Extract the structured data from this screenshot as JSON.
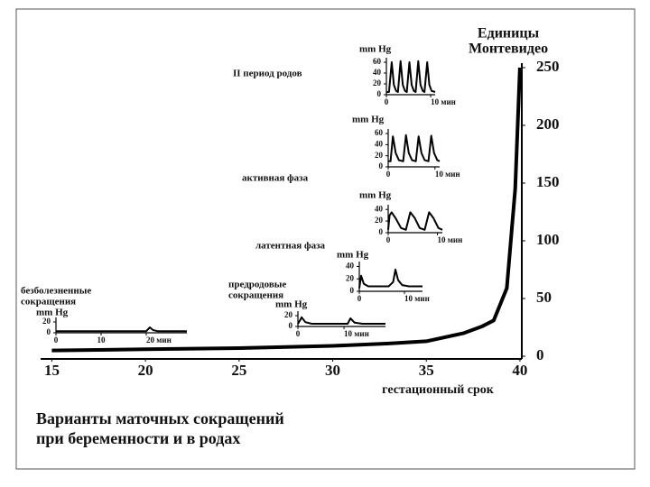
{
  "chart_data": [
    {
      "type": "line",
      "title": [
        "Варианты маточных сокращений",
        "при беременности и в родах"
      ],
      "x_label": "гестационный срок",
      "y_label": [
        "Единицы",
        "Монтевидео"
      ],
      "x": [
        15,
        20,
        25,
        30,
        33,
        35,
        37,
        38,
        38.6,
        39.3,
        39.75,
        40
      ],
      "values": [
        5,
        6,
        7,
        9,
        11,
        13,
        20,
        26,
        31,
        59,
        145,
        250
      ],
      "color": "#000000",
      "xlim": [
        14.4,
        40.1
      ],
      "ylim": [
        0,
        250
      ],
      "xticks": [
        15,
        20,
        25,
        30,
        35,
        40
      ],
      "yticks": [
        0,
        50,
        100,
        150,
        200,
        250
      ]
    },
    {
      "type": "line",
      "label": [
        "II период родов"
      ],
      "y_label": "mm Hg",
      "x": [
        0,
        0.6,
        1.2,
        1.7,
        2.2,
        2.6,
        3.2,
        3.7,
        4.2,
        4.6,
        5.2,
        5.7,
        6.2,
        6.6,
        7.2,
        7.7,
        8.2,
        8.6,
        9.2,
        9.7,
        10.2,
        11
      ],
      "values": [
        5,
        5,
        60,
        18,
        7,
        5,
        62,
        18,
        7,
        5,
        60,
        18,
        7,
        5,
        62,
        18,
        7,
        5,
        60,
        18,
        7,
        5
      ],
      "xlim": [
        0,
        11
      ],
      "ylim": [
        0,
        65
      ],
      "xticks": [
        0,
        {
          "value": 10,
          "label": "10 мин"
        }
      ],
      "yticks": [
        0,
        20,
        40,
        60
      ]
    },
    {
      "type": "line",
      "label": [
        "активная фаза"
      ],
      "y_label": "mm Hg",
      "x": [
        0,
        0.5,
        1,
        1.6,
        2.3,
        3.2,
        3.8,
        4.4,
        5.1,
        5.9,
        6.5,
        7.1,
        7.8,
        8.6,
        9.2,
        9.8,
        10.5,
        11
      ],
      "values": [
        10,
        10,
        55,
        25,
        12,
        10,
        57,
        25,
        12,
        10,
        55,
        25,
        12,
        10,
        56,
        25,
        12,
        10
      ],
      "xlim": [
        0,
        11
      ],
      "ylim": [
        0,
        65
      ],
      "xticks": [
        0,
        {
          "value": 10,
          "label": "10 мин"
        }
      ],
      "yticks": [
        0,
        20,
        40,
        60
      ]
    },
    {
      "type": "line",
      "label": [
        "латентная фаза"
      ],
      "y_label": "mm Hg",
      "x": [
        0,
        0.3,
        0.7,
        1.5,
        2.6,
        3.6,
        4.5,
        5.4,
        6.4,
        7.4,
        8.3,
        9.2,
        10.2,
        11
      ],
      "values": [
        5,
        30,
        35,
        25,
        8,
        5,
        35,
        25,
        8,
        5,
        35,
        25,
        8,
        5
      ],
      "xlim": [
        0,
        11
      ],
      "ylim": [
        0,
        45
      ],
      "xticks": [
        0,
        {
          "value": 10,
          "label": "10 мин"
        }
      ],
      "yticks": [
        0,
        20,
        40
      ]
    },
    {
      "type": "line",
      "label": [
        "предродовые",
        "сокращения"
      ],
      "y_label": "mm Hg",
      "x": [
        0,
        0.4,
        1,
        2,
        6.5,
        7.5,
        8,
        8.6,
        9.5,
        11,
        14
      ],
      "values": [
        5,
        25,
        12,
        8,
        8,
        15,
        35,
        18,
        10,
        8,
        8
      ],
      "xlim": [
        0,
        14
      ],
      "ylim": [
        0,
        45
      ],
      "xticks": [
        0,
        {
          "value": 10,
          "label": "10 мин"
        }
      ],
      "yticks": [
        0,
        20,
        40
      ]
    },
    {
      "type": "line",
      "label": [
        "безболезненные",
        "сокращения"
      ],
      "y_label": "mm Hg",
      "x": [
        0,
        20,
        20.8,
        21.5,
        22.5,
        29
      ],
      "values": [
        3,
        3,
        10,
        5,
        3,
        3
      ],
      "xlim": [
        0,
        29
      ],
      "ylim": [
        0,
        25
      ],
      "xticks": [
        0,
        10,
        {
          "value": 20,
          "label": "20 мин"
        }
      ],
      "yticks": [
        0,
        20
      ]
    },
    {
      "type": "line",
      "y_label": "mm Hg",
      "x": [
        0,
        0.5,
        0.8,
        1.6,
        3,
        10.8,
        11.4,
        12.3,
        14,
        19
      ],
      "values": [
        5,
        12,
        17,
        8,
        5,
        5,
        15,
        7,
        5,
        5
      ],
      "xlim": [
        0,
        19
      ],
      "ylim": [
        0,
        25
      ],
      "xticks": [
        0,
        {
          "value": 10,
          "label": "10 мин"
        }
      ],
      "yticks": [
        0,
        20
      ]
    }
  ]
}
